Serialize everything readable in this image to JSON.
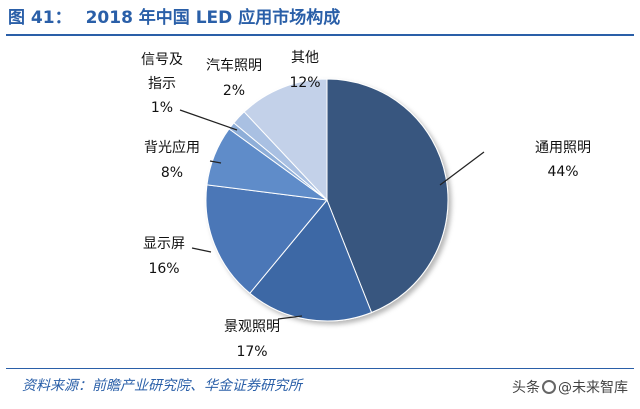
{
  "header": {
    "figure_label": "图 41：",
    "title_text": "2018 年中国 LED 应用市场构成"
  },
  "footer": {
    "source": "资料来源：前瞻产业研究院、华金证券研究所",
    "watermark_prefix": "头条",
    "watermark_handle": "@未来智库"
  },
  "chart_data": {
    "type": "pie",
    "title": "2018 年中国 LED 应用市场构成",
    "slices": [
      {
        "label": "通用照明",
        "value": 44,
        "display": "44%",
        "color": "#37577f"
      },
      {
        "label": "景观照明",
        "value": 17,
        "display": "17%",
        "color": "#3e68a5"
      },
      {
        "label": "显示屏",
        "value": 16,
        "display": "16%",
        "color": "#4b77b7"
      },
      {
        "label": "背光应用",
        "value": 8,
        "display": "8%",
        "color": "#5f8cc9"
      },
      {
        "label": "信号及指示",
        "value": 1,
        "display": "1%",
        "color": "#8eaed8"
      },
      {
        "label": "汽车照明",
        "value": 2,
        "display": "2%",
        "color": "#a9c0e2"
      },
      {
        "label": "其他",
        "value": 12,
        "display": "12%",
        "color": "#c3d1e9"
      }
    ],
    "start_angle": "12 o'clock",
    "direction": "clockwise",
    "legend": "none (callout labels)"
  }
}
